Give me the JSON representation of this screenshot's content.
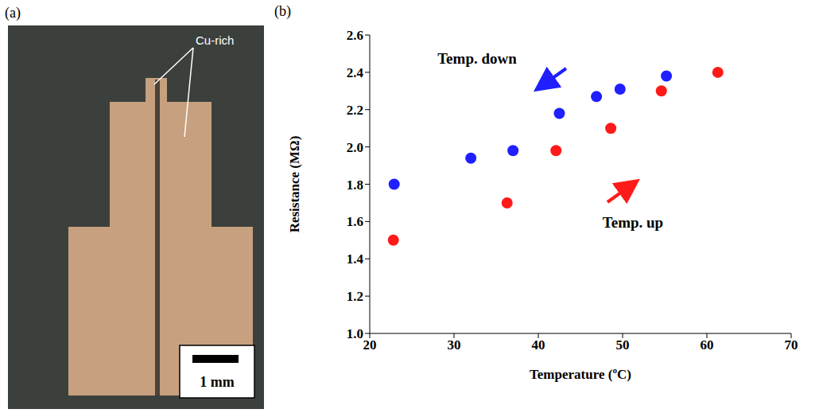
{
  "panel_a": {
    "label": "(a)",
    "annotation": "Cu-rich",
    "scale_bar": "1 mm"
  },
  "panel_b": {
    "label": "(b)"
  },
  "chart_data": {
    "type": "scatter",
    "xlabel": "Temperature (ºC)",
    "ylabel": "Resistance (MΩ)",
    "xlim": [
      20,
      70
    ],
    "xticks": [
      20,
      30,
      40,
      50,
      60,
      70
    ],
    "ylim": [
      1.0,
      2.6
    ],
    "yticks": [
      {
        "value": 1,
        "label": "1.0"
      },
      1.2,
      1.4,
      1.6,
      1.8,
      {
        "value": 2,
        "label": "2.0"
      },
      2.2,
      2.4,
      2.6
    ],
    "grid": false,
    "series": [
      {
        "name": "Temp. down",
        "color": "#1f1fff",
        "marker": "circle",
        "x": [
          22.9,
          32.0,
          37.0,
          42.5,
          46.9,
          49.7,
          55.2
        ],
        "values": [
          1.8,
          1.94,
          1.98,
          2.18,
          2.27,
          2.31,
          2.38
        ]
      },
      {
        "name": "Temp. up",
        "color": "#ff1a1a",
        "marker": "circle",
        "x": [
          22.8,
          36.3,
          42.1,
          48.6,
          54.6,
          61.3
        ],
        "values": [
          1.5,
          1.7,
          1.98,
          2.1,
          2.3,
          2.4
        ]
      }
    ]
  }
}
